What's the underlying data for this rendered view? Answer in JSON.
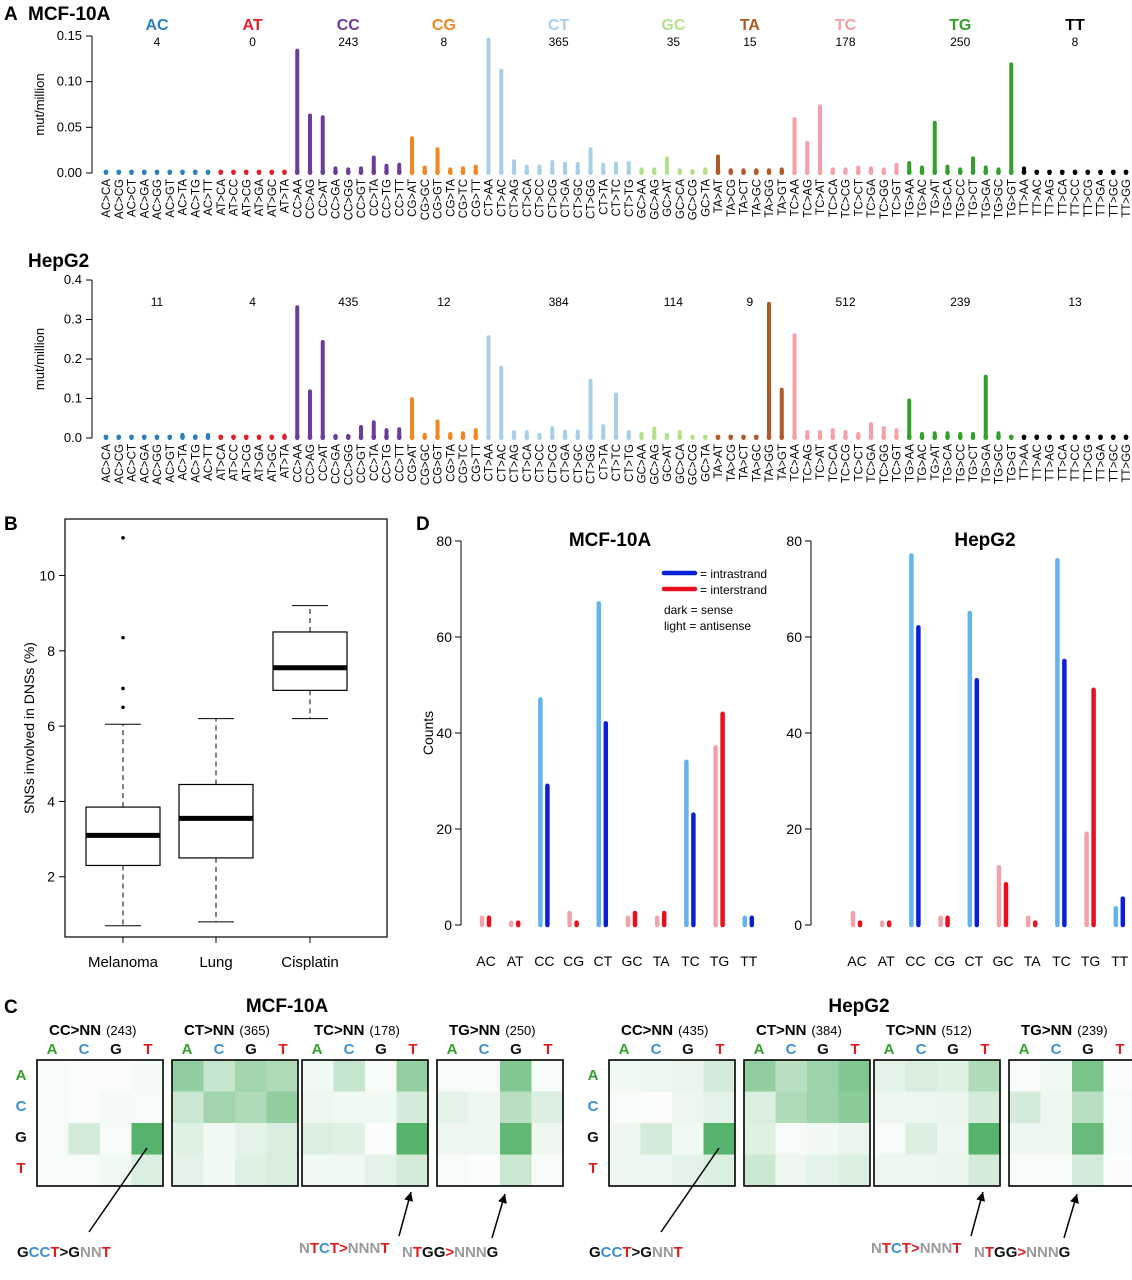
{
  "colors": {
    "AC": "#2b7fbf",
    "AT": "#e0202a",
    "CC": "#6a3d9a",
    "CG": "#f4861f",
    "CT": "#a9cfe6",
    "GC": "#b6df8a",
    "TA": "#b05a28",
    "TC": "#f4a0a4",
    "TG": "#33a02c",
    "TT": "#000000",
    "intra_light": "#63b3ee",
    "intra_dark": "#0a1fd6",
    "inter_light": "#f0a3a8",
    "inter_dark": "#e8101c",
    "heat_max": "#4daf64",
    "A_label": "#33a02c",
    "C_label": "#3f8fd2",
    "G_label": "#111111",
    "T_label": "#e01d1d",
    "grey_label": "#9a9a9a"
  },
  "panel_a": {
    "letter": "A",
    "groups": [
      "AC",
      "AT",
      "CC",
      "CG",
      "CT",
      "GC",
      "TA",
      "TC",
      "TG",
      "TT"
    ],
    "categories": [
      "AC>CA",
      "AC>CG",
      "AC>CT",
      "AC>GA",
      "AC>GG",
      "AC>GT",
      "AC>TA",
      "AC>TG",
      "AC>TT",
      "AT>CA",
      "AT>CC",
      "AT>CG",
      "AT>GA",
      "AT>GC",
      "AT>TA",
      "CC>AA",
      "CC>AG",
      "CC>AT",
      "CC>GA",
      "CC>GG",
      "CC>GT",
      "CC>TA",
      "CC>TG",
      "CC>TT",
      "CG>AT",
      "CG>GC",
      "CG>GT",
      "CG>TA",
      "CG>TC",
      "CG>TT",
      "CT>AA",
      "CT>AC",
      "CT>AG",
      "CT>CA",
      "CT>CC",
      "CT>CG",
      "CT>GA",
      "CT>GC",
      "CT>GG",
      "CT>TA",
      "CT>TC",
      "CT>TG",
      "GC>AA",
      "GC>AG",
      "GC>AT",
      "GC>CA",
      "GC>CG",
      "GC>TA",
      "TA>AT",
      "TA>CG",
      "TA>CT",
      "TA>GC",
      "TA>GG",
      "TA>GT",
      "TC>AA",
      "TC>AG",
      "TC>AT",
      "TC>CA",
      "TC>CG",
      "TC>CT",
      "TC>GA",
      "TC>GG",
      "TC>GT",
      "TG>AA",
      "TG>AC",
      "TG>AT",
      "TG>CA",
      "TG>CC",
      "TG>CT",
      "TG>GA",
      "TG>GC",
      "TG>GT",
      "TT>AA",
      "TT>AC",
      "TT>AG",
      "TT>CA",
      "TT>CC",
      "TT>CG",
      "TT>GA",
      "TT>GC",
      "TT>GG"
    ],
    "category_groups": [
      0,
      0,
      0,
      0,
      0,
      0,
      0,
      0,
      0,
      1,
      1,
      1,
      1,
      1,
      1,
      2,
      2,
      2,
      2,
      2,
      2,
      2,
      2,
      2,
      3,
      3,
      3,
      3,
      3,
      3,
      4,
      4,
      4,
      4,
      4,
      4,
      4,
      4,
      4,
      4,
      4,
      4,
      5,
      5,
      5,
      5,
      5,
      5,
      6,
      6,
      6,
      6,
      6,
      6,
      7,
      7,
      7,
      7,
      7,
      7,
      7,
      7,
      7,
      8,
      8,
      8,
      8,
      8,
      8,
      8,
      8,
      8,
      9,
      9,
      9,
      9,
      9,
      9,
      9,
      9,
      9
    ],
    "ylabel": "mut/million",
    "mcf": {
      "title": "MCF-10A",
      "ylim": [
        0,
        0.15
      ],
      "yticks": [
        "0.00",
        "0.05",
        "0.10",
        "0.15"
      ],
      "group_counts": [
        "4",
        "0",
        "243",
        "8",
        "365",
        "35",
        "15",
        "178",
        "250",
        "8"
      ],
      "values": [
        0.001,
        0.001,
        0.001,
        0.001,
        0.001,
        0.001,
        0.001,
        0.001,
        0.001,
        0.001,
        0.001,
        0.001,
        0.001,
        0.001,
        0.001,
        0.134,
        0.063,
        0.061,
        0.005,
        0.004,
        0.005,
        0.017,
        0.008,
        0.009,
        0.038,
        0.006,
        0.026,
        0.004,
        0.005,
        0.007,
        0.146,
        0.112,
        0.013,
        0.007,
        0.007,
        0.012,
        0.01,
        0.01,
        0.026,
        0.009,
        0.01,
        0.011,
        0.004,
        0.004,
        0.016,
        0.003,
        0.002,
        0.004,
        0.018,
        0.003,
        0.003,
        0.003,
        0.003,
        0.004,
        0.059,
        0.033,
        0.073,
        0.004,
        0.004,
        0.006,
        0.005,
        0.004,
        0.009,
        0.011,
        0.006,
        0.055,
        0.007,
        0.004,
        0.016,
        0.006,
        0.004,
        0.119,
        0.005,
        0.001,
        0.001,
        0.001,
        0.001,
        0.001,
        0.001,
        0.001,
        0.001
      ]
    },
    "hep": {
      "title": "HepG2",
      "ylim": [
        0,
        0.4
      ],
      "yticks": [
        "0.0",
        "0.1",
        "0.2",
        "0.3",
        "0.4"
      ],
      "group_counts": [
        "11",
        "4",
        "435",
        "12",
        "384",
        "114",
        "9",
        "512",
        "239",
        "13"
      ],
      "values": [
        0.003,
        0.003,
        0.003,
        0.003,
        0.003,
        0.003,
        0.008,
        0.004,
        0.008,
        0.003,
        0.003,
        0.003,
        0.003,
        0.003,
        0.006,
        0.331,
        0.118,
        0.243,
        0.005,
        0.005,
        0.028,
        0.04,
        0.02,
        0.022,
        0.098,
        0.008,
        0.042,
        0.01,
        0.012,
        0.02,
        0.255,
        0.178,
        0.015,
        0.015,
        0.008,
        0.025,
        0.016,
        0.016,
        0.145,
        0.03,
        0.11,
        0.015,
        0.01,
        0.024,
        0.008,
        0.015,
        0.003,
        0.003,
        0.003,
        0.003,
        0.003,
        0.003,
        0.34,
        0.122,
        0.26,
        0.015,
        0.015,
        0.02,
        0.015,
        0.01,
        0.035,
        0.025,
        0.02,
        0.095,
        0.01,
        0.012,
        0.012,
        0.01,
        0.01,
        0.155,
        0.012,
        0.002,
        0.002,
        0.002,
        0.002,
        0.002,
        0.002,
        0.002,
        0.002,
        0.002,
        0.002
      ]
    }
  },
  "panel_b": {
    "letter": "B",
    "ylabel": "SNSs involved in DNSs (%)",
    "ylim": [
      0.4,
      11.5
    ],
    "yticks": [
      "2",
      "4",
      "6",
      "8",
      "10"
    ],
    "boxes": [
      {
        "label": "Melanoma",
        "whisker_low": 0.7,
        "q1": 2.3,
        "median": 3.1,
        "q3": 3.85,
        "whisker_high": 6.05,
        "outliers": [
          6.5,
          7.0,
          8.35,
          11.0
        ]
      },
      {
        "label": "Lung",
        "whisker_low": 0.8,
        "q1": 2.5,
        "median": 3.55,
        "q3": 4.45,
        "whisker_high": 6.2,
        "outliers": []
      },
      {
        "label": "Cisplatin",
        "whisker_low": 6.2,
        "q1": 6.95,
        "median": 7.55,
        "q3": 8.5,
        "whisker_high": 9.2,
        "outliers": []
      }
    ]
  },
  "panel_d": {
    "letter": "D",
    "ylabel": "Counts",
    "ylim": [
      0,
      80
    ],
    "yticks": [
      "0",
      "20",
      "40",
      "60",
      "80"
    ],
    "categories": [
      "AC",
      "AT",
      "CC",
      "CG",
      "CT",
      "GC",
      "TA",
      "TC",
      "TG",
      "TT"
    ],
    "category_type": [
      "inter",
      "inter",
      "intra",
      "inter",
      "intra",
      "inter",
      "inter",
      "intra",
      "inter",
      "intra"
    ],
    "legend": {
      "intrastrand": "= intrastrand",
      "interstrand": "= interstrand",
      "sense": "dark = sense",
      "antisense": "light = antisense"
    },
    "mcf": {
      "title": "MCF-10A",
      "antisense": [
        1.5,
        0.5,
        47,
        2.5,
        67,
        1.5,
        1.5,
        34,
        37,
        1.5
      ],
      "sense": [
        1.5,
        0.5,
        29,
        0.5,
        42,
        2.5,
        2.5,
        23,
        44,
        1.5
      ]
    },
    "hep": {
      "title": "HepG2",
      "antisense": [
        2.5,
        0.5,
        77,
        1.5,
        65,
        12,
        1.5,
        76,
        19,
        3.5
      ],
      "sense": [
        0.5,
        0.5,
        62,
        1.5,
        51,
        8.5,
        0.5,
        55,
        49,
        5.5
      ]
    }
  },
  "panel_c": {
    "letter": "C",
    "bases": [
      "A",
      "C",
      "G",
      "T"
    ],
    "groups": [
      {
        "title": "MCF-10A",
        "maps": [
          {
            "label": "CC>NN",
            "count": "(243)",
            "cells": [
              [
                0.05,
                0.03,
                0.03,
                0.06
              ],
              [
                0.05,
                0.03,
                0.06,
                0.05
              ],
              [
                0.05,
                0.25,
                0.05,
                0.95
              ],
              [
                0.05,
                0.05,
                0.08,
                0.2
              ]
            ]
          },
          {
            "label": "CT>NN",
            "count": "(365)",
            "cells": [
              [
                0.62,
                0.32,
                0.52,
                0.45
              ],
              [
                0.3,
                0.52,
                0.45,
                0.62
              ],
              [
                0.18,
                0.08,
                0.15,
                0.22
              ],
              [
                0.15,
                0.08,
                0.18,
                0.22
              ]
            ]
          },
          {
            "label": "TC>NN",
            "count": "(178)",
            "cells": [
              [
                0.08,
                0.32,
                0.05,
                0.6
              ],
              [
                0.1,
                0.08,
                0.08,
                0.25
              ],
              [
                0.2,
                0.18,
                0.02,
                0.95
              ],
              [
                0.08,
                0.08,
                0.15,
                0.25
              ]
            ]
          },
          {
            "label": "TG>NN",
            "count": "(250)",
            "cells": [
              [
                0.05,
                0.05,
                0.7,
                0.05
              ],
              [
                0.15,
                0.1,
                0.4,
                0.2
              ],
              [
                0.1,
                0.1,
                0.9,
                0.1
              ],
              [
                0.05,
                0.02,
                0.3,
                0.05
              ]
            ]
          }
        ],
        "motifs": [
          {
            "parts": [
              {
                "t": "G",
                "c": "G"
              },
              {
                "t": "C",
                "c": "C"
              },
              {
                "t": "C",
                "c": "C"
              },
              {
                "t": "T",
                "c": "T"
              },
              {
                "t": ">",
                "c": "G"
              },
              {
                "t": "G",
                "c": "G"
              },
              {
                "t": "N",
                "c": "grey"
              },
              {
                "t": "N",
                "c": "grey"
              },
              {
                "t": "T",
                "c": "T"
              }
            ]
          },
          {
            "parts": [
              {
                "t": "N",
                "c": "grey"
              },
              {
                "t": "T",
                "c": "T"
              },
              {
                "t": "C",
                "c": "C"
              },
              {
                "t": "T",
                "c": "T"
              },
              {
                "t": ">",
                "c": "T"
              },
              {
                "t": "N",
                "c": "grey"
              },
              {
                "t": "N",
                "c": "grey"
              },
              {
                "t": "N",
                "c": "grey"
              },
              {
                "t": "T",
                "c": "T"
              }
            ]
          },
          {
            "parts": [
              {
                "t": "N",
                "c": "grey"
              },
              {
                "t": "T",
                "c": "T"
              },
              {
                "t": "G",
                "c": "G"
              },
              {
                "t": "G",
                "c": "G"
              },
              {
                "t": ">",
                "c": "T"
              },
              {
                "t": "N",
                "c": "grey"
              },
              {
                "t": "N",
                "c": "grey"
              },
              {
                "t": "N",
                "c": "grey"
              },
              {
                "t": "G",
                "c": "G"
              }
            ]
          }
        ]
      },
      {
        "title": "HepG2",
        "maps": [
          {
            "label": "CC>NN",
            "count": "(435)",
            "cells": [
              [
                0.08,
                0.1,
                0.12,
                0.25
              ],
              [
                0.05,
                0.03,
                0.1,
                0.15
              ],
              [
                0.1,
                0.25,
                0.08,
                0.95
              ],
              [
                0.1,
                0.1,
                0.15,
                0.2
              ]
            ]
          },
          {
            "label": "CT>NN",
            "count": "(384)",
            "cells": [
              [
                0.62,
                0.4,
                0.55,
                0.7
              ],
              [
                0.2,
                0.45,
                0.55,
                0.65
              ],
              [
                0.18,
                0.05,
                0.08,
                0.12
              ],
              [
                0.3,
                0.1,
                0.15,
                0.2
              ]
            ]
          },
          {
            "label": "TC>NN",
            "count": "(512)",
            "cells": [
              [
                0.15,
                0.22,
                0.18,
                0.45
              ],
              [
                0.1,
                0.1,
                0.12,
                0.25
              ],
              [
                0.05,
                0.2,
                0.1,
                0.95
              ],
              [
                0.1,
                0.1,
                0.12,
                0.25
              ]
            ]
          },
          {
            "label": "TG>NN",
            "count": "(239)",
            "cells": [
              [
                0.05,
                0.08,
                0.75,
                0.02
              ],
              [
                0.25,
                0.1,
                0.4,
                0.05
              ],
              [
                0.1,
                0.1,
                0.85,
                0.05
              ],
              [
                0.05,
                0.05,
                0.25,
                0.02
              ]
            ]
          }
        ],
        "motifs": [
          {
            "parts": [
              {
                "t": "G",
                "c": "G"
              },
              {
                "t": "C",
                "c": "C"
              },
              {
                "t": "C",
                "c": "C"
              },
              {
                "t": "T",
                "c": "T"
              },
              {
                "t": ">",
                "c": "G"
              },
              {
                "t": "G",
                "c": "G"
              },
              {
                "t": "N",
                "c": "grey"
              },
              {
                "t": "N",
                "c": "grey"
              },
              {
                "t": "T",
                "c": "T"
              }
            ]
          },
          {
            "parts": [
              {
                "t": "N",
                "c": "grey"
              },
              {
                "t": "T",
                "c": "T"
              },
              {
                "t": "C",
                "c": "C"
              },
              {
                "t": "T",
                "c": "T"
              },
              {
                "t": ">",
                "c": "T"
              },
              {
                "t": "N",
                "c": "grey"
              },
              {
                "t": "N",
                "c": "grey"
              },
              {
                "t": "N",
                "c": "grey"
              },
              {
                "t": "T",
                "c": "T"
              }
            ]
          },
          {
            "parts": [
              {
                "t": "N",
                "c": "grey"
              },
              {
                "t": "T",
                "c": "T"
              },
              {
                "t": "G",
                "c": "G"
              },
              {
                "t": "G",
                "c": "G"
              },
              {
                "t": ">",
                "c": "T"
              },
              {
                "t": "N",
                "c": "grey"
              },
              {
                "t": "N",
                "c": "grey"
              },
              {
                "t": "N",
                "c": "grey"
              },
              {
                "t": "G",
                "c": "G"
              }
            ]
          }
        ]
      }
    ]
  }
}
